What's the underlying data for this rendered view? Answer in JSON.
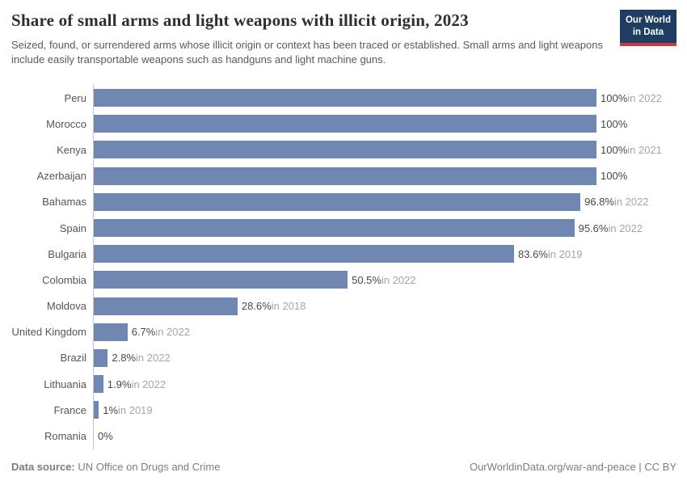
{
  "chart_data": {
    "type": "bar",
    "orientation": "horizontal",
    "title": "Share of small arms and light weapons with illicit origin, 2023",
    "subtitle": "Seized, found, or surrendered arms whose illicit origin or context has been traced or established. Small arms and light weapons include easily transportable weapons such as handguns and light machine guns.",
    "categories": [
      "Peru",
      "Morocco",
      "Kenya",
      "Azerbaijan",
      "Bahamas",
      "Spain",
      "Bulgaria",
      "Colombia",
      "Moldova",
      "United Kingdom",
      "Brazil",
      "Lithuania",
      "France",
      "Romania"
    ],
    "values": [
      100,
      100,
      100,
      100,
      96.8,
      95.6,
      83.6,
      50.5,
      28.6,
      6.7,
      2.8,
      1.9,
      1,
      0
    ],
    "value_labels": [
      "100%",
      "100%",
      "100%",
      "100%",
      "96.8%",
      "95.6%",
      "83.6%",
      "50.5%",
      "28.6%",
      "6.7%",
      "2.8%",
      "1.9%",
      "1%",
      "0%"
    ],
    "year_notes": [
      "in 2022",
      "",
      "in 2021",
      "",
      "in 2022",
      "in 2022",
      "in 2019",
      "in 2022",
      "in 2018",
      "in 2022",
      "in 2022",
      "in 2022",
      "in 2019",
      ""
    ],
    "unit": "%",
    "xlim": [
      0,
      100
    ],
    "grid": false,
    "bar_color": "#6f87b1",
    "axis_line_color": "#c4c4c4"
  },
  "logo": {
    "line1": "Our World",
    "line2": "in Data",
    "bg_color": "#1d3d63",
    "accent_color": "#d5343f"
  },
  "footer": {
    "source_label": "Data source:",
    "source_value": "UN Office on Drugs and Crime",
    "right_text": "OurWorldinData.org/war-and-peace | CC BY"
  }
}
